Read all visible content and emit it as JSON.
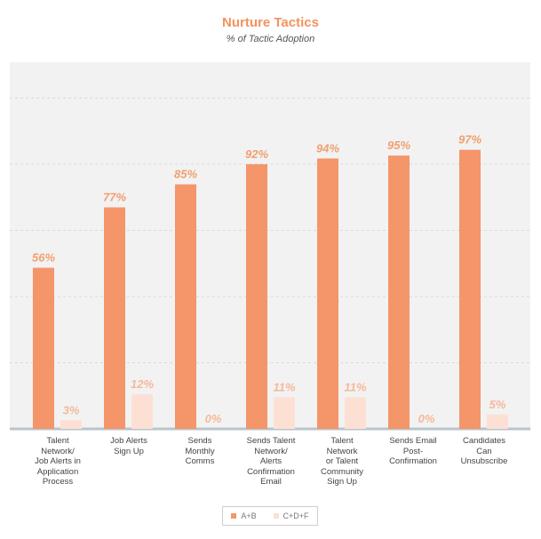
{
  "chart_data": {
    "type": "bar",
    "title": "Nurture Tactics",
    "subtitle": "% of Tactic Adoption",
    "categories": [
      "Talent\nNetwork/\nJob Alerts in\nApplication\nProcess",
      "Job Alerts\nSign Up",
      "Sends\nMonthly\nComms",
      "Sends Talent\nNetwork/\nAlerts\nConfirmation\nEmail",
      "Talent\nNetwork\nor Talent\nCommunity\nSign Up",
      "Sends Email\nPost-\nConfirmation",
      "Candidates\nCan\nUnsubscribe"
    ],
    "series": [
      {
        "name": "A+B",
        "values": [
          56,
          77,
          85,
          92,
          94,
          95,
          97
        ],
        "labels": [
          "56%",
          "77%",
          "85%",
          "92%",
          "94%",
          "95%",
          "97%"
        ],
        "color": "#f4956a"
      },
      {
        "name": "C+D+F",
        "values": [
          3,
          12,
          0,
          11,
          11,
          0,
          5
        ],
        "labels": [
          "3%",
          "12%",
          "0%",
          "11%",
          "11%",
          "0%",
          "5%"
        ],
        "color": "#fde0d4"
      }
    ],
    "ylim": [
      0,
      100
    ],
    "grid": true,
    "legend_position": "bottom-center"
  }
}
